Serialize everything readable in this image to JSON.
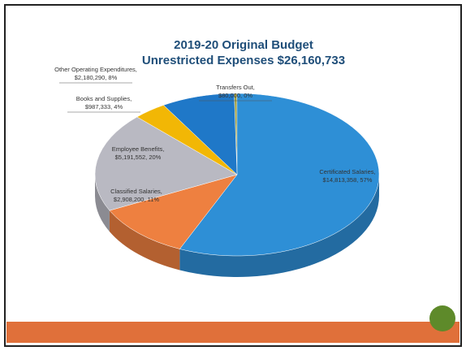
{
  "chart_data": {
    "type": "pie",
    "title": "2019-20 Original Budget",
    "subtitle": "Unrestricted Expenses $26,160,733",
    "categories": [
      "Transfers Out,",
      "Certificated Salaries,",
      "Classified Salaries,",
      "Employee Benefits,",
      "Books and Supplies,",
      "Other Operating Expenditures,"
    ],
    "values": [
      80000,
      14813358,
      2908200,
      5191552,
      987333,
      2180290
    ],
    "value_labels": [
      "$80,000, 0%",
      "$14,813,358, 57%",
      "$2,908,200, 11%",
      "$5,191,552, 20%",
      "$987,333, 4%",
      "$2,180,290, 8%"
    ],
    "colors": [
      "#9a9a3a",
      "#2e8fd6",
      "#ee8040",
      "#b9b9c2",
      "#f2b705",
      "#1f78c8"
    ]
  }
}
